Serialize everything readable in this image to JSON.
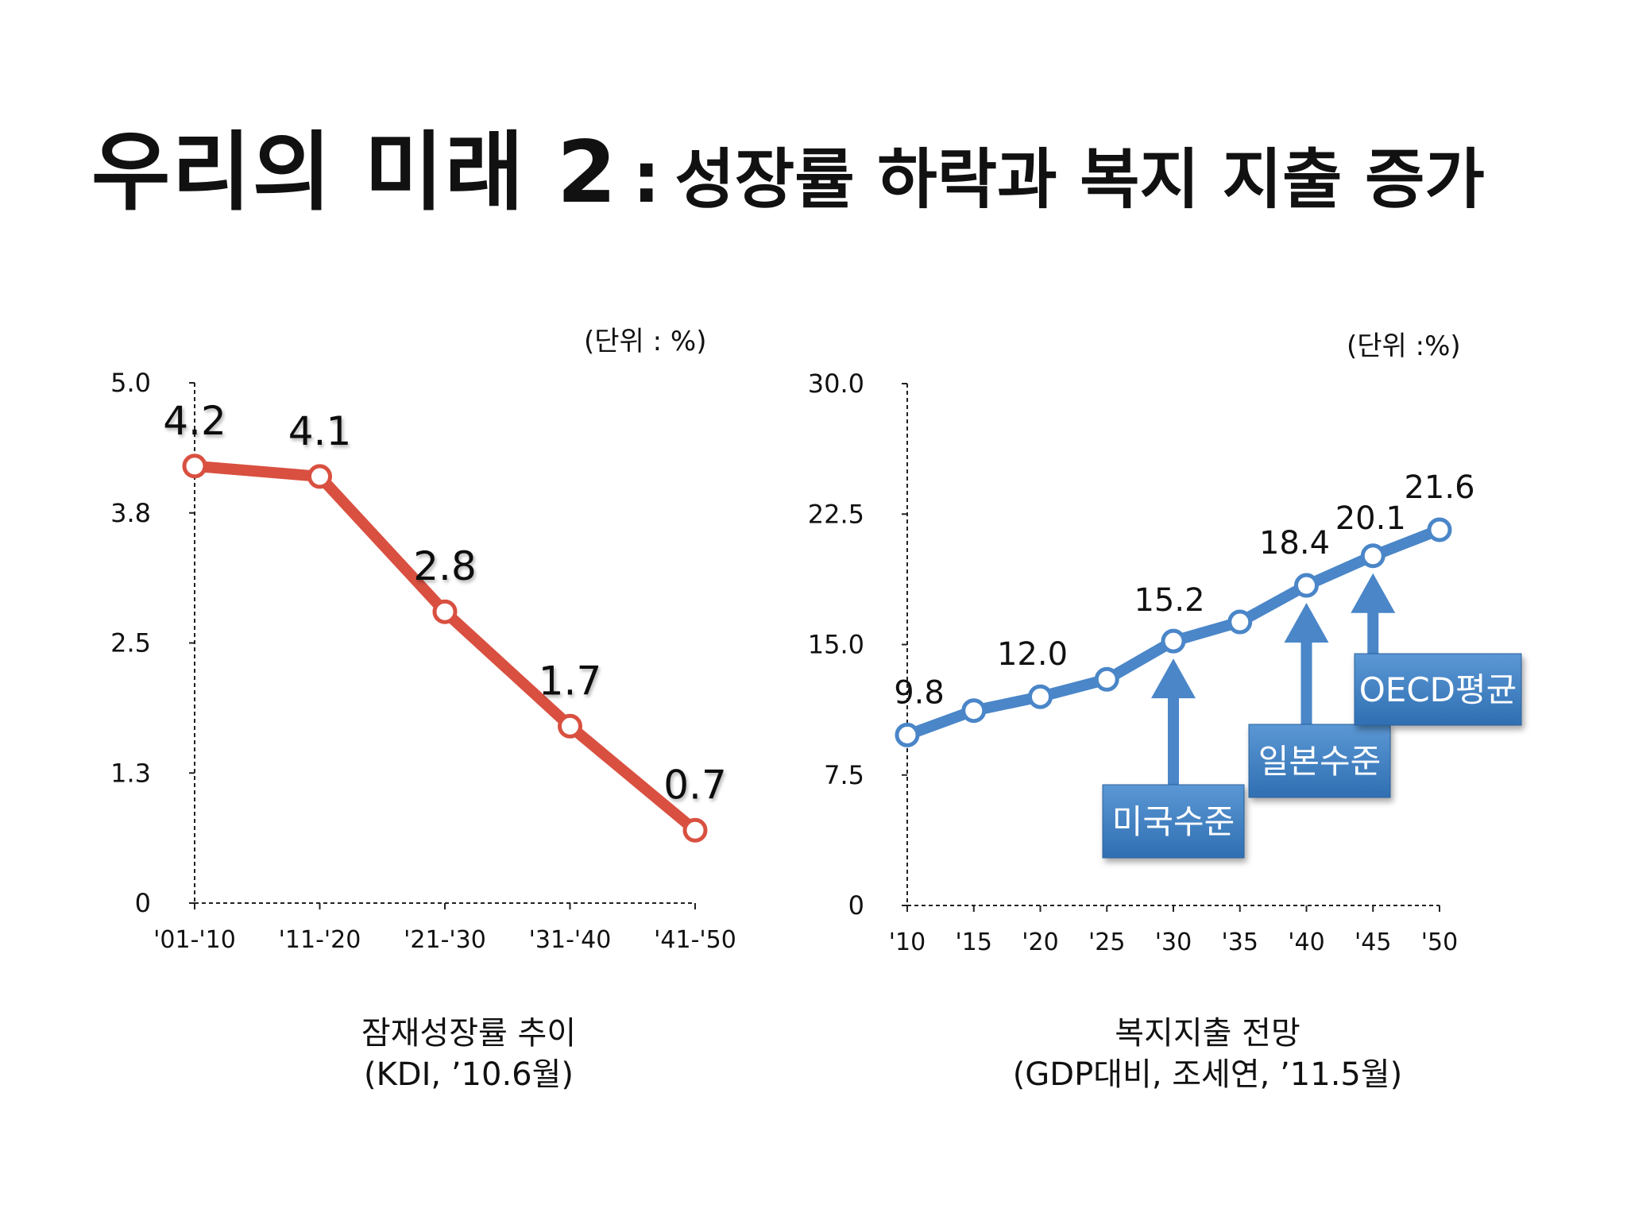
{
  "title": {
    "main": "우리의 미래 2",
    "separator": ":",
    "sub": "성장률 하락과 복지 지출 증가"
  },
  "chart_data": [
    {
      "type": "line",
      "title": "잠재성장률 추이",
      "source": "(KDI, ’10.6월)",
      "unit_label": "(단위 : %)",
      "categories": [
        "'01-'10",
        "'11-'20",
        "'21-'30",
        "'31-'40",
        "'41-'50"
      ],
      "values": [
        4.2,
        4.1,
        2.8,
        1.7,
        0.7
      ],
      "data_labels": [
        "4.2",
        "4.1",
        "2.8",
        "1.7",
        "0.7"
      ],
      "ylim": [
        0,
        5.0
      ],
      "yticks": [
        0,
        1.25,
        2.5,
        3.75,
        5.0
      ],
      "ytick_labels": [
        "0",
        "1.3",
        "2.5",
        "3.8",
        "5.0"
      ],
      "color": "#d95040",
      "grid": false
    },
    {
      "type": "line",
      "title": "복지지출 전망",
      "source": "(GDP대비, 조세연, ’11.5월)",
      "unit_label": "(단위 :%)",
      "categories": [
        "'10",
        "'15",
        "'20",
        "'25",
        "'30",
        "'35",
        "'40",
        "'45",
        "'50"
      ],
      "values": [
        9.8,
        11.2,
        12.0,
        13.0,
        15.2,
        16.3,
        18.4,
        20.1,
        21.6
      ],
      "data_labels": [
        "9.8",
        "",
        "12.0",
        "",
        "15.2",
        "",
        "18.4",
        "20.1",
        "21.6"
      ],
      "ylim": [
        0,
        30.0
      ],
      "yticks": [
        0,
        7.5,
        15.0,
        22.5,
        30.0
      ],
      "ytick_labels": [
        "0",
        "7.5",
        "15.0",
        "22.5",
        "30.0"
      ],
      "color": "#4a86c8",
      "grid": false,
      "annotations": [
        {
          "text": "미국수준",
          "category": "'30",
          "value": 15.2
        },
        {
          "text": "일본수준",
          "category": "'40",
          "value": 18.4
        },
        {
          "text": "OECD평균",
          "category": "'45",
          "value": 20.1
        }
      ]
    }
  ]
}
